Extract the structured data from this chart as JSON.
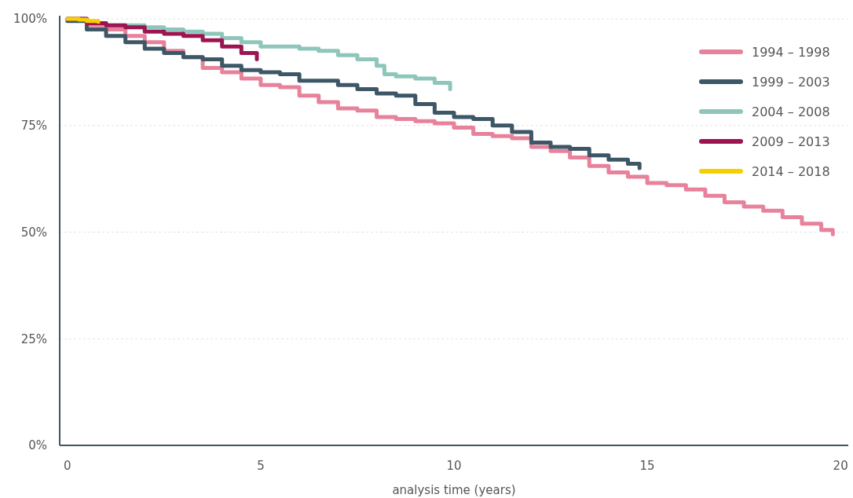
{
  "chart_data": {
    "type": "step",
    "xlabel": "analysis time (years)",
    "xlim": [
      -0.2,
      20.2
    ],
    "xticks": [
      0,
      5,
      10,
      15,
      20
    ],
    "ylim": [
      0,
      100
    ],
    "yticks": [
      {
        "value": 0,
        "label": "0%"
      },
      {
        "value": 25,
        "label": "25%"
      },
      {
        "value": 50,
        "label": "50%"
      },
      {
        "value": 75,
        "label": "75%"
      },
      {
        "value": 100,
        "label": "100%"
      }
    ],
    "grid": "y",
    "legend": "top right",
    "line_style": "solid",
    "series": [
      {
        "name": "1994 – 1998",
        "color": "#e8829b",
        "x": [
          0,
          0.5,
          1,
          1.5,
          2,
          2.5,
          3,
          3.5,
          4,
          4.5,
          5,
          5.5,
          6,
          6.5,
          7,
          7.5,
          8,
          8.5,
          9,
          9.5,
          10,
          10.5,
          11,
          11.5,
          12,
          12.5,
          13,
          13.5,
          14,
          14.5,
          15,
          15.5,
          16,
          16.5,
          17,
          17.5,
          18,
          18.5,
          19,
          19.5,
          19.8
        ],
        "values": [
          100,
          98.5,
          97.5,
          96,
          94.5,
          92.5,
          91,
          88.5,
          87.5,
          86,
          84.5,
          84,
          82,
          80.5,
          79,
          78.5,
          77,
          76.5,
          76,
          75.5,
          74.5,
          73,
          72.5,
          72,
          70,
          69,
          67.5,
          65.5,
          64,
          63,
          61.5,
          61,
          60,
          58.5,
          57,
          56,
          55,
          53.5,
          52,
          50.5,
          49.5
        ]
      },
      {
        "name": "1999 – 2003",
        "color": "#3d5766",
        "x": [
          0,
          0.5,
          1,
          1.5,
          2,
          2.5,
          3,
          3.5,
          4,
          4.5,
          5,
          5.5,
          6,
          6.5,
          7,
          7.5,
          8,
          8.5,
          9,
          9.5,
          10,
          10.5,
          11,
          11.5,
          12,
          12.5,
          13,
          13.5,
          14,
          14.5,
          14.8
        ],
        "values": [
          99.5,
          97.5,
          96,
          94.5,
          93,
          92,
          91,
          90.5,
          89,
          88,
          87.5,
          87,
          85.5,
          85.5,
          84.5,
          83.5,
          82.5,
          82,
          80,
          78,
          77,
          76.5,
          75,
          73.5,
          71,
          70,
          69.5,
          68,
          67,
          66,
          65
        ]
      },
      {
        "name": "2004 – 2008",
        "color": "#8ec6bb",
        "x": [
          0,
          0.5,
          1,
          2,
          2.5,
          3,
          3.5,
          4,
          4.5,
          5,
          5.5,
          6,
          6.5,
          7,
          7.5,
          8,
          8.2,
          8.5,
          9,
          9.5,
          9.9
        ],
        "values": [
          100,
          99,
          98.5,
          98,
          97.5,
          97,
          96.5,
          95.5,
          94.5,
          93.5,
          93.5,
          93,
          92.5,
          91.5,
          90.5,
          89,
          87,
          86.5,
          86,
          85,
          83.5
        ]
      },
      {
        "name": "2009 – 2013",
        "color": "#9c1550",
        "x": [
          0,
          0.5,
          1,
          1.5,
          2,
          2.5,
          3,
          3.5,
          4,
          4.5,
          4.9
        ],
        "values": [
          100,
          99,
          98.5,
          98,
          97,
          96.5,
          96,
          95,
          93.5,
          92,
          90.5
        ]
      },
      {
        "name": "2014 – 2018",
        "color": "#f7cf00",
        "x": [
          0,
          0.3,
          0.5,
          0.8
        ],
        "values": [
          100,
          99.8,
          99.5,
          99.3
        ]
      }
    ]
  }
}
